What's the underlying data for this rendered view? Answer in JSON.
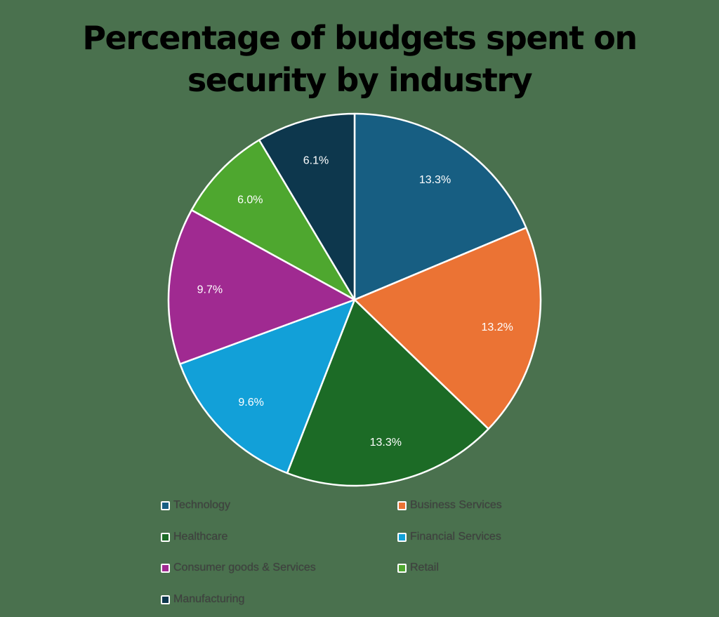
{
  "chart_data": {
    "type": "pie",
    "title": "Percentage of budgets spent on security by industry",
    "categories": [
      "Technology",
      "Business Services",
      "Healthcare",
      "Financial Services",
      "Consumer goods & Services",
      "Retail",
      "Manufacturing"
    ],
    "values": [
      13.3,
      13.2,
      13.3,
      9.6,
      9.7,
      6.0,
      6.1
    ],
    "value_labels": [
      "13.3%",
      "13.2%",
      "13.3%",
      "9.6%",
      "9.7%",
      "6.0%",
      "6.1%"
    ],
    "colors": [
      "#175e82",
      "#eb7334",
      "#1c6b26",
      "#12a0d8",
      "#a02a91",
      "#4ea72f",
      "#0d374d"
    ],
    "start_angle_deg": 0,
    "direction": "clockwise",
    "legend_position": "bottom",
    "xlabel": "",
    "ylabel": ""
  },
  "title": {
    "line1": "Percentage of budgets spent on",
    "line2": "security by industry"
  },
  "legend": {
    "items": [
      {
        "label": "Technology",
        "color": "#175e82"
      },
      {
        "label": "Business Services",
        "color": "#eb7334"
      },
      {
        "label": "Healthcare",
        "color": "#1c6b26"
      },
      {
        "label": "Financial Services",
        "color": "#12a0d8"
      },
      {
        "label": "Consumer goods & Services",
        "color": "#a02a91"
      },
      {
        "label": "Retail",
        "color": "#4ea72f"
      },
      {
        "label": "Manufacturing",
        "color": "#0d374d"
      }
    ]
  },
  "colors": {
    "background": "#4a714e",
    "slice_border": "#ffffff",
    "title_text": "#000000",
    "legend_text": "#404040"
  }
}
